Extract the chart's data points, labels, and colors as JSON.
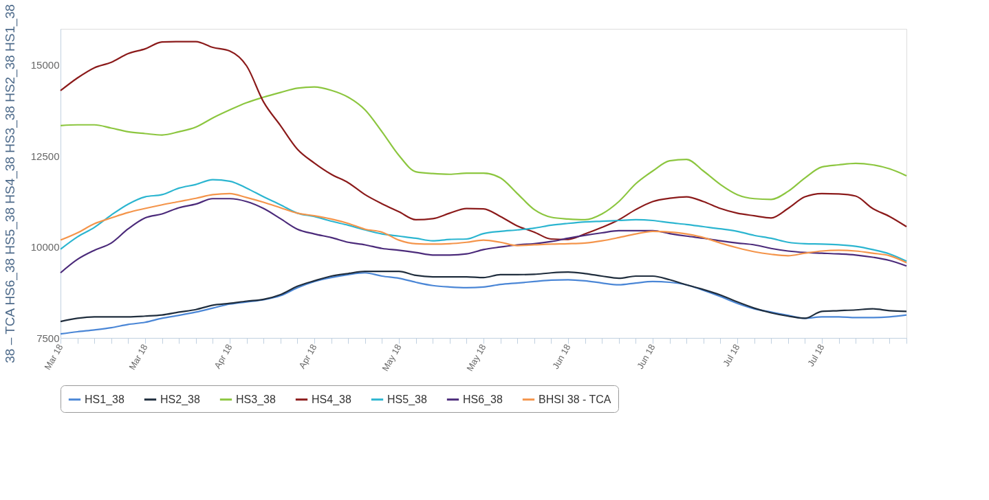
{
  "chart_data": {
    "type": "line",
    "ylabel": "38 – TCA HS6_38 HS5_38 HS4_38 HS3_38 HS2_38 HS1_38",
    "categories": [
      "Mar 18",
      null,
      null,
      null,
      null,
      "Mar 18",
      null,
      null,
      null,
      null,
      "Apr 18",
      null,
      null,
      null,
      null,
      "Apr 18",
      null,
      null,
      null,
      null,
      "May 18",
      null,
      null,
      null,
      null,
      "May 18",
      null,
      null,
      null,
      null,
      "Jun 18",
      null,
      null,
      null,
      null,
      "Jun 18",
      null,
      null,
      null,
      null,
      "Jul 18",
      null,
      null,
      null,
      null,
      "Jul 18",
      null,
      null,
      null,
      null,
      null
    ],
    "ylim": [
      7500,
      16000
    ],
    "yticks": [
      7500,
      10000,
      12500,
      15000
    ],
    "grid": false,
    "legend": "bottom",
    "series": [
      {
        "name": "HS1_38",
        "color": "#4a86d6",
        "values": [
          7610,
          7670,
          7720,
          7780,
          7870,
          7930,
          8040,
          8120,
          8210,
          8320,
          8430,
          8490,
          8550,
          8660,
          8880,
          9050,
          9160,
          9240,
          9290,
          9200,
          9140,
          9030,
          8940,
          8900,
          8880,
          8900,
          8970,
          9010,
          9050,
          9090,
          9100,
          9070,
          9010,
          8960,
          9010,
          9050,
          9030,
          8960,
          8810,
          8640,
          8450,
          8300,
          8210,
          8120,
          8040,
          8080,
          8080,
          8060,
          8060,
          8080,
          8130
        ]
      },
      {
        "name": "HS2_38",
        "color": "#1f2d3d",
        "values": [
          7950,
          8040,
          8080,
          8080,
          8080,
          8100,
          8130,
          8210,
          8280,
          8400,
          8450,
          8510,
          8560,
          8690,
          8920,
          9070,
          9200,
          9270,
          9330,
          9330,
          9330,
          9220,
          9180,
          9180,
          9180,
          9160,
          9240,
          9240,
          9250,
          9290,
          9310,
          9270,
          9200,
          9140,
          9200,
          9200,
          9100,
          8960,
          8830,
          8680,
          8490,
          8320,
          8190,
          8100,
          8040,
          8230,
          8250,
          8270,
          8300,
          8250,
          8230
        ]
      },
      {
        "name": "HS3_38",
        "color": "#8cc63f",
        "values": [
          13340,
          13360,
          13360,
          13270,
          13170,
          13120,
          13080,
          13170,
          13300,
          13550,
          13770,
          13970,
          14120,
          14250,
          14370,
          14400,
          14310,
          14120,
          13770,
          13170,
          12520,
          12070,
          12020,
          12000,
          12030,
          12030,
          11900,
          11470,
          11030,
          10820,
          10770,
          10750,
          10910,
          11250,
          11740,
          12090,
          12370,
          12410,
          12090,
          11720,
          11440,
          11330,
          11310,
          11530,
          11900,
          12200,
          12260,
          12300,
          12260,
          12150,
          11960
        ]
      },
      {
        "name": "HS4_38",
        "color": "#8b1a1a",
        "values": [
          14300,
          14650,
          14930,
          15080,
          15320,
          15450,
          15640,
          15650,
          15650,
          15490,
          15390,
          14980,
          13990,
          13340,
          12690,
          12310,
          12000,
          11770,
          11440,
          11190,
          10970,
          10750,
          10780,
          10930,
          11060,
          11050,
          10840,
          10580,
          10410,
          10220,
          10210,
          10360,
          10540,
          10750,
          11030,
          11250,
          11340,
          11380,
          11250,
          11060,
          10930,
          10860,
          10800,
          11060,
          11380,
          11470,
          11460,
          11400,
          11060,
          10840,
          10560
        ]
      },
      {
        "name": "HS5_38",
        "color": "#2bb5d0",
        "values": [
          9940,
          10280,
          10540,
          10880,
          11180,
          11380,
          11440,
          11620,
          11720,
          11850,
          11810,
          11620,
          11380,
          11160,
          10930,
          10840,
          10710,
          10600,
          10470,
          10360,
          10300,
          10240,
          10170,
          10210,
          10220,
          10370,
          10430,
          10470,
          10520,
          10600,
          10650,
          10690,
          10710,
          10730,
          10750,
          10730,
          10670,
          10620,
          10560,
          10500,
          10430,
          10320,
          10240,
          10130,
          10090,
          10080,
          10060,
          10020,
          9930,
          9810,
          9610
        ]
      },
      {
        "name": "HS6_38",
        "color": "#4b2a7a",
        "values": [
          9290,
          9660,
          9910,
          10110,
          10500,
          10800,
          10910,
          11080,
          11180,
          11330,
          11330,
          11250,
          11060,
          10780,
          10490,
          10360,
          10260,
          10130,
          10060,
          9960,
          9910,
          9850,
          9780,
          9780,
          9810,
          9930,
          10000,
          10060,
          10090,
          10150,
          10240,
          10320,
          10390,
          10450,
          10450,
          10450,
          10370,
          10300,
          10240,
          10170,
          10110,
          10060,
          9960,
          9890,
          9850,
          9830,
          9810,
          9780,
          9720,
          9630,
          9480
        ]
      },
      {
        "name": "BHSI 38 - TCA",
        "color": "#f4944a",
        "values": [
          10190,
          10390,
          10640,
          10800,
          10950,
          11060,
          11160,
          11250,
          11340,
          11440,
          11470,
          11360,
          11230,
          11080,
          10930,
          10860,
          10770,
          10650,
          10490,
          10410,
          10190,
          10090,
          10080,
          10090,
          10130,
          10190,
          10130,
          10040,
          10060,
          10080,
          10090,
          10110,
          10170,
          10260,
          10360,
          10430,
          10410,
          10360,
          10260,
          10110,
          9980,
          9870,
          9800,
          9760,
          9830,
          9890,
          9910,
          9890,
          9830,
          9760,
          9570
        ]
      }
    ]
  }
}
